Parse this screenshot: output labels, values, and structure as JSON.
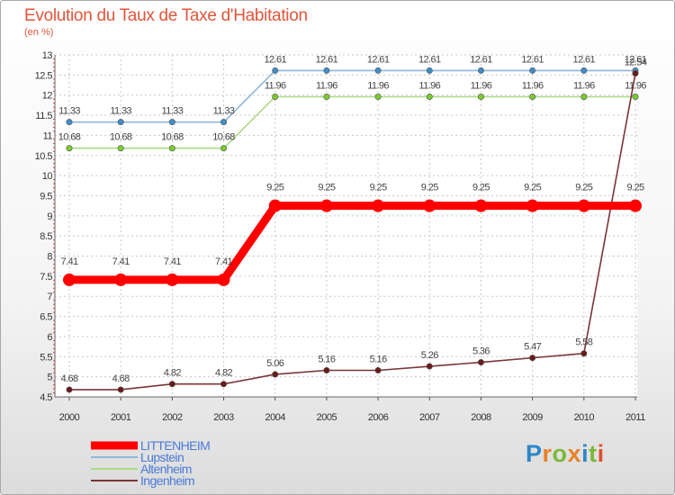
{
  "chart_data": {
    "type": "line",
    "title": "Evolution du Taux de Taxe d'Habitation",
    "subtitle": "(en %)",
    "xlabel": "",
    "ylabel": "",
    "categories": [
      "2000",
      "2001",
      "2002",
      "2003",
      "2004",
      "2005",
      "2006",
      "2007",
      "2008",
      "2009",
      "2010",
      "2011"
    ],
    "ylim": [
      4.5,
      13
    ],
    "yticks": [
      "4.5",
      "5",
      "5.5",
      "6",
      "6.5",
      "7",
      "7.5",
      "8",
      "8.5",
      "9",
      "9.5",
      "10",
      "10.5",
      "11",
      "11.5",
      "12",
      "12.5",
      "13"
    ],
    "grid": true,
    "legend_position": "bottom-left",
    "series": [
      {
        "name": "LITTENHEIM",
        "color": "#ff0000",
        "line_color": "#ff0000",
        "thick": true,
        "values": [
          7.41,
          7.41,
          7.41,
          7.41,
          9.25,
          9.25,
          9.25,
          9.25,
          9.25,
          9.25,
          9.25,
          9.25
        ],
        "labels": [
          "7.41",
          "7.41",
          "7.41",
          "7.41",
          "9.25",
          "9.25",
          "9.25",
          "9.25",
          "9.25",
          "9.25",
          "9.25",
          "9.25"
        ]
      },
      {
        "name": "Lupstein",
        "color": "#3f8ec9",
        "line_color": "#8fb7dc",
        "thick": false,
        "values": [
          11.33,
          11.33,
          11.33,
          11.33,
          12.61,
          12.61,
          12.61,
          12.61,
          12.61,
          12.61,
          12.61,
          12.61
        ],
        "labels": [
          "11.33",
          "11.33",
          "11.33",
          "11.33",
          "12.61",
          "12.61",
          "12.61",
          "12.61",
          "12.61",
          "12.61",
          "12.61",
          "12.61"
        ]
      },
      {
        "name": "Altenheim",
        "color": "#7acc2e",
        "line_color": "#a8dc86",
        "thick": false,
        "values": [
          10.68,
          10.68,
          10.68,
          10.68,
          11.96,
          11.96,
          11.96,
          11.96,
          11.96,
          11.96,
          11.96,
          11.96
        ],
        "labels": [
          "10.68",
          "10.68",
          "10.68",
          "10.68",
          "11.96",
          "11.96",
          "11.96",
          "11.96",
          "11.96",
          "11.96",
          "11.96",
          "11.96"
        ]
      },
      {
        "name": "Ingenheim",
        "color": "#6b1a1a",
        "line_color": "#7a3535",
        "thick": false,
        "values": [
          4.68,
          4.68,
          4.82,
          4.82,
          5.06,
          5.16,
          5.16,
          5.26,
          5.36,
          5.47,
          5.58,
          12.54
        ],
        "labels": [
          "4.68",
          "4.68",
          "4.82",
          "4.82",
          "5.06",
          "5.16",
          "5.16",
          "5.26",
          "5.36",
          "5.47",
          "5.58",
          "12.54"
        ]
      }
    ]
  },
  "logo": {
    "letters": [
      "P",
      "r",
      "o",
      "x",
      "i",
      "t",
      "i"
    ],
    "colors": [
      "#2e86c8",
      "#e8822a",
      "#7ab83a",
      "#e8822a",
      "#2e86c8",
      "#7ab83a",
      "#e05030"
    ]
  }
}
